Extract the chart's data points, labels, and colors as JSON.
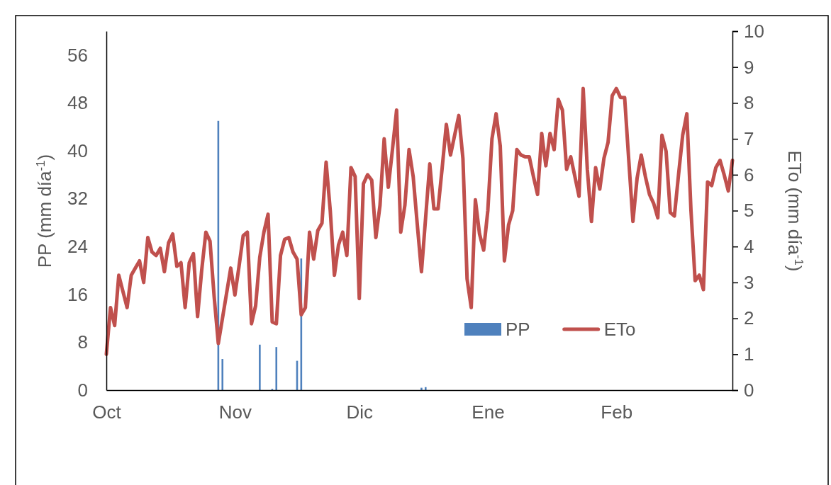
{
  "chart_data": {
    "type": "bar",
    "ylabel": "PP (mm día$^{-1}$)",
    "y2label": "ETo (mm día$^{-1}$)",
    "categories": [
      "Oct",
      null,
      null,
      null,
      null,
      null,
      null,
      null,
      null,
      null,
      null,
      null,
      null,
      null,
      null,
      null,
      null,
      null,
      null,
      null,
      null,
      null,
      null,
      null,
      null,
      null,
      null,
      null,
      null,
      null,
      null,
      "Nov",
      null,
      null,
      null,
      null,
      null,
      null,
      null,
      null,
      null,
      null,
      null,
      null,
      null,
      null,
      null,
      null,
      null,
      null,
      null,
      null,
      null,
      null,
      null,
      null,
      null,
      null,
      null,
      null,
      null,
      "Dic",
      null,
      null,
      null,
      null,
      null,
      null,
      null,
      null,
      null,
      null,
      null,
      null,
      null,
      null,
      null,
      null,
      null,
      null,
      null,
      null,
      null,
      null,
      null,
      null,
      null,
      null,
      null,
      null,
      null,
      null,
      "Ene",
      null,
      null,
      null,
      null,
      null,
      null,
      null,
      null,
      null,
      null,
      null,
      null,
      null,
      null,
      null,
      null,
      null,
      null,
      null,
      null,
      null,
      null,
      null,
      null,
      null,
      null,
      null,
      null,
      null,
      null,
      "Feb",
      null,
      null,
      null,
      null,
      null,
      null,
      null,
      null,
      null,
      null,
      null,
      null,
      null,
      null,
      null,
      null,
      null,
      null,
      null,
      null,
      null,
      null,
      null,
      null,
      null,
      null,
      null,
      null
    ],
    "ylim": [
      0,
      60
    ],
    "yticks": [
      0,
      8,
      16,
      24,
      32,
      40,
      48,
      56
    ],
    "y2lim": [
      0,
      10
    ],
    "y2ticks": [
      0,
      1,
      2,
      3,
      4,
      5,
      6,
      7,
      8,
      9,
      10
    ],
    "grid": false,
    "legend": "bottom right",
    "series": [
      {
        "name": "PP",
        "color": "#4f81bd",
        "values": [
          null,
          null,
          null,
          null,
          null,
          null,
          null,
          null,
          null,
          null,
          null,
          null,
          null,
          null,
          null,
          null,
          null,
          null,
          null,
          null,
          null,
          null,
          null,
          null,
          null,
          null,
          null,
          45,
          5.2,
          null,
          null,
          null,
          null,
          null,
          null,
          null,
          null,
          7.6,
          null,
          null,
          0.2,
          7.2,
          null,
          null,
          null,
          null,
          4.9,
          22,
          null,
          null,
          null,
          null,
          null,
          null,
          null,
          null,
          null,
          null,
          null,
          null,
          null,
          null,
          null,
          null,
          null,
          null,
          null,
          null,
          null,
          null,
          null,
          null,
          null,
          null,
          null,
          null,
          0.4,
          0.5,
          null,
          null,
          null,
          null,
          null,
          null,
          null,
          null,
          null,
          null,
          null,
          null,
          null,
          null,
          null,
          null,
          null,
          null,
          null,
          null,
          null,
          null,
          null,
          null,
          null,
          null,
          null,
          null,
          null,
          null,
          null,
          null,
          null,
          null,
          null,
          null,
          null,
          null,
          null,
          null,
          null,
          null,
          null,
          null,
          null,
          null,
          null,
          null,
          null,
          null,
          null,
          null,
          null,
          null,
          null,
          null,
          null,
          null,
          null,
          null,
          null,
          null,
          null,
          null,
          null,
          null,
          null,
          null,
          null,
          null,
          null,
          null,
          null,
          null
        ]
      },
      {
        "name": "ETo",
        "type": "line",
        "axis": "y2",
        "color": "#c0504d",
        "line_style": "solid",
        "marker": "none",
        "values": [
          1.0,
          2.3,
          1.8,
          3.2,
          2.75,
          2.3,
          3.2,
          3.4,
          3.6,
          3.0,
          4.25,
          3.85,
          3.75,
          3.95,
          3.3,
          4.1,
          4.35,
          3.45,
          3.55,
          2.3,
          3.55,
          3.8,
          2.05,
          3.35,
          4.4,
          4.15,
          2.6,
          1.3,
          2.0,
          2.7,
          3.4,
          2.65,
          3.45,
          4.3,
          4.4,
          1.85,
          2.35,
          3.7,
          4.4,
          4.9,
          1.9,
          1.85,
          3.75,
          4.2,
          4.25,
          3.85,
          3.65,
          2.1,
          2.3,
          4.4,
          3.65,
          4.45,
          4.65,
          6.35,
          5.0,
          3.2,
          4.05,
          4.4,
          3.75,
          6.2,
          5.95,
          2.55,
          5.75,
          6.0,
          5.85,
          4.25,
          5.15,
          7.0,
          5.65,
          6.7,
          7.8,
          4.4,
          5.15,
          6.7,
          5.95,
          4.6,
          3.3,
          4.8,
          6.3,
          5.05,
          5.05,
          6.2,
          7.4,
          6.55,
          7.1,
          7.65,
          6.45,
          3.1,
          2.3,
          5.3,
          4.35,
          3.9,
          5.0,
          7.0,
          7.7,
          6.8,
          3.6,
          4.6,
          5.0,
          6.7,
          6.55,
          6.5,
          6.5,
          5.95,
          5.45,
          7.15,
          6.25,
          7.15,
          6.7,
          8.1,
          7.8,
          6.15,
          6.5,
          5.95,
          5.4,
          8.4,
          6.15,
          4.7,
          6.2,
          5.6,
          6.45,
          6.9,
          8.2,
          8.4,
          8.15,
          8.15,
          6.4,
          4.7,
          5.9,
          6.55,
          5.95,
          5.45,
          5.2,
          4.8,
          7.1,
          6.65,
          4.95,
          4.85,
          6.0,
          7.1,
          7.7,
          5.0,
          3.05,
          3.2,
          2.8,
          5.8,
          5.7,
          6.2,
          6.4,
          6.0,
          5.55,
          6.4
        ]
      }
    ]
  }
}
